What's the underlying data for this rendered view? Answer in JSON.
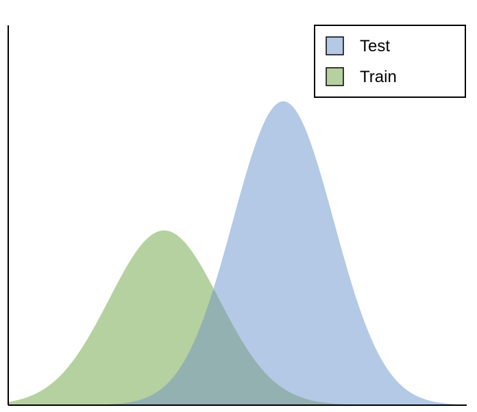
{
  "chart_data": {
    "type": "area",
    "title": "",
    "xlabel": "",
    "ylabel": "",
    "xlim": [
      0,
      10
    ],
    "ylim": [
      0,
      1.0
    ],
    "grid": false,
    "legend_position": "top-right",
    "series": [
      {
        "name": "Test",
        "color": "#b3c9e6",
        "peak_x": 6.0,
        "peak_y": 0.8,
        "sd": 1.1
      },
      {
        "name": "Train",
        "color": "#b5d1a0",
        "peak_x": 3.4,
        "peak_y": 0.46,
        "sd": 1.2
      }
    ],
    "overlap_color": "#93b1b0"
  }
}
